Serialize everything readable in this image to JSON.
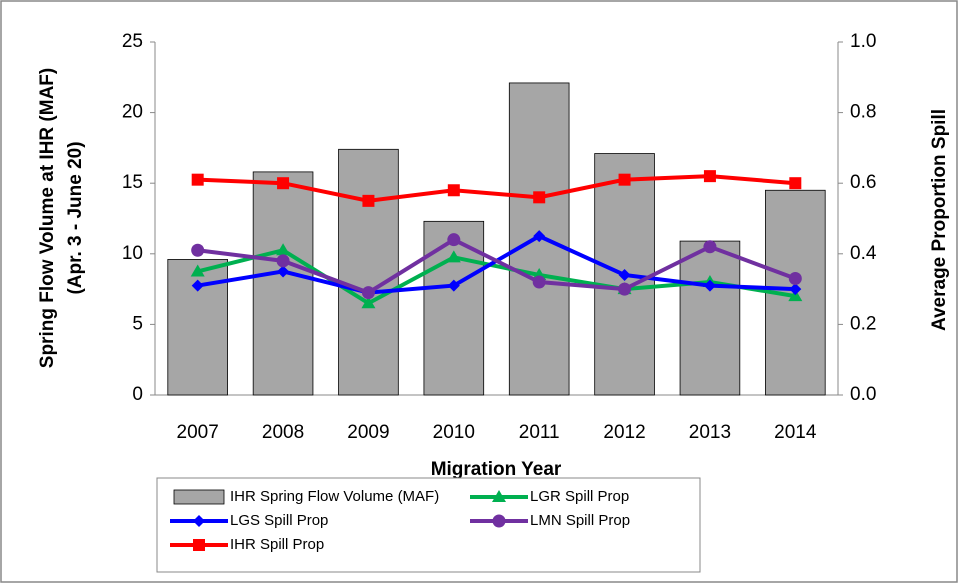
{
  "chart_data": {
    "type": "bar-line",
    "x_label": "Migration Year",
    "y_label": [
      "Spring Flow Volume at IHR (MAF)",
      "(Apr. 3 - June 20)"
    ],
    "y2_label": "Average Proportion Spill",
    "categories": [
      "2007",
      "2008",
      "2009",
      "2010",
      "2011",
      "2012",
      "2013",
      "2014"
    ],
    "ylim": [
      0,
      25
    ],
    "yticks": [
      0,
      5,
      10,
      15,
      20,
      25
    ],
    "y2lim": [
      0,
      1.0
    ],
    "y2ticks": [
      {
        "value": 0,
        "label": "0.0"
      },
      0.2,
      0.4,
      0.6,
      0.8,
      {
        "value": 1.0,
        "label": "1.0"
      }
    ],
    "series": [
      {
        "name": "IHR Spring Flow Volume (MAF)",
        "kind": "bar",
        "color": "#a6a6a6",
        "values": [
          9.6,
          15.8,
          17.4,
          12.3,
          22.1,
          17.1,
          10.9,
          14.5
        ]
      },
      {
        "name": "LGR Spill Prop",
        "kind": "line",
        "marker": "triangle",
        "axis": "y2",
        "color": "#00b050",
        "values": [
          0.35,
          0.41,
          0.26,
          0.39,
          0.34,
          0.3,
          0.32,
          0.28
        ]
      },
      {
        "name": "LGS Spill Prop",
        "kind": "line",
        "marker": "diamond",
        "axis": "y2",
        "color": "#0000ff",
        "values": [
          0.31,
          0.35,
          0.29,
          0.31,
          0.45,
          0.34,
          0.31,
          0.3
        ]
      },
      {
        "name": "LMN Spill Prop",
        "kind": "line",
        "marker": "circle",
        "axis": "y2",
        "color": "#7030a0",
        "values": [
          0.41,
          0.38,
          0.29,
          0.44,
          0.32,
          0.3,
          0.42,
          0.33
        ]
      },
      {
        "name": "IHR Spill Prop",
        "kind": "line",
        "marker": "square",
        "axis": "y2",
        "color": "#ff0000",
        "values": [
          0.61,
          0.6,
          0.55,
          0.58,
          0.56,
          0.61,
          0.62,
          0.6
        ]
      }
    ]
  }
}
